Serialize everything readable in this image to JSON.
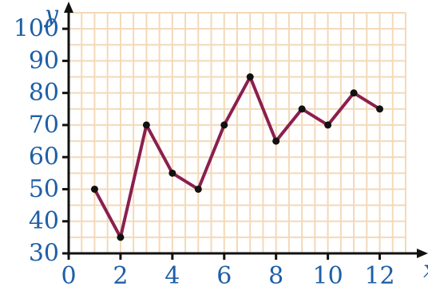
{
  "chart_data": {
    "type": "line",
    "title": "",
    "xlabel": "x",
    "ylabel": "y",
    "x": [
      1,
      2,
      3,
      4,
      5,
      6,
      7,
      8,
      9,
      10,
      11,
      12
    ],
    "series": [
      {
        "values": [
          50,
          35,
          70,
          55,
          50,
          70,
          85,
          65,
          75,
          70,
          80,
          75
        ]
      }
    ],
    "xlim": [
      0,
      13
    ],
    "ylim": [
      30,
      105
    ],
    "xticks": [
      0,
      2,
      4,
      6,
      8,
      10,
      12
    ],
    "yticks": [
      30,
      40,
      50,
      60,
      70,
      80,
      90,
      100
    ],
    "grid": true,
    "legend": "none",
    "colors": {
      "line": "#8b1f4f",
      "marker": "#111111",
      "grid": "#f3d9b8",
      "axis": "#111111",
      "labels": "#1f5fa6"
    }
  }
}
